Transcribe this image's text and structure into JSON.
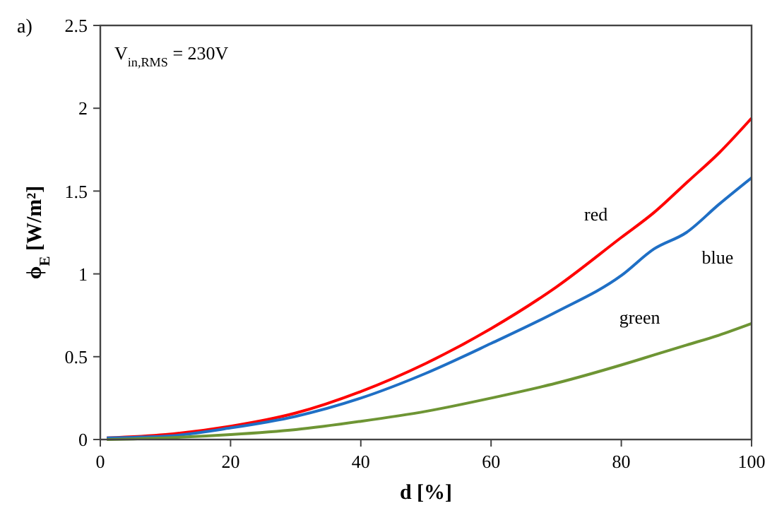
{
  "chart_data": {
    "type": "line",
    "xlabel": "d [%]",
    "ylabel": "ϕ$_{E}$ [W/m²]",
    "annotations": [
      "a)",
      "V$_{in,RMS}$ = 230V"
    ],
    "x": [
      1,
      10,
      20,
      30,
      40,
      50,
      60,
      70,
      80,
      85,
      90,
      95,
      100
    ],
    "series": [
      {
        "name": "red",
        "color": "#ff0000",
        "values": [
          0.01,
          0.03,
          0.08,
          0.16,
          0.29,
          0.46,
          0.67,
          0.92,
          1.22,
          1.37,
          1.55,
          1.73,
          1.94
        ]
      },
      {
        "name": "blue",
        "color": "#1f6fc5",
        "values": [
          0.01,
          0.02,
          0.07,
          0.14,
          0.25,
          0.4,
          0.58,
          0.77,
          0.99,
          1.15,
          1.25,
          1.42,
          1.58
        ]
      },
      {
        "name": "green",
        "color": "#6e9534",
        "values": [
          0.0,
          0.01,
          0.03,
          0.06,
          0.11,
          0.17,
          0.25,
          0.34,
          0.45,
          0.51,
          0.57,
          0.63,
          0.7
        ]
      }
    ],
    "xlim": [
      0,
      100
    ],
    "xticks": [
      0,
      20,
      40,
      60,
      80,
      100
    ],
    "ylim": [
      0,
      2.5
    ],
    "yticks": [
      0,
      0.5,
      1,
      1.5,
      2,
      2.5
    ],
    "grid": false,
    "marker": "none",
    "line_style": "solid"
  }
}
